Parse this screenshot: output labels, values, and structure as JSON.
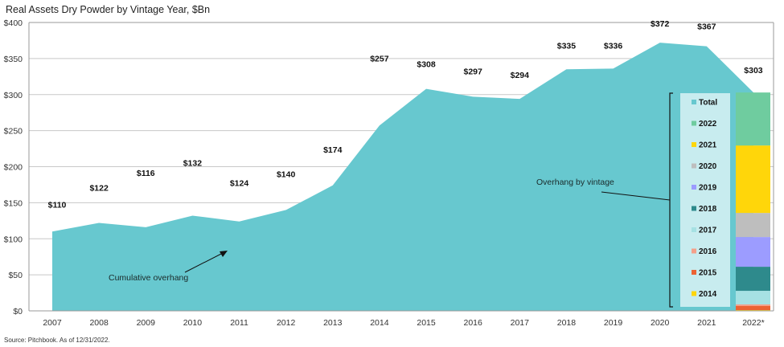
{
  "chart_data": {
    "type": "area",
    "title": "Real Assets Dry Powder by Vintage Year, $Bn",
    "xlabel": "",
    "ylabel": "",
    "ylim": [
      0,
      400
    ],
    "yticks": [
      0,
      50,
      100,
      150,
      200,
      250,
      300,
      350,
      400
    ],
    "ytick_labels": [
      "$0",
      "$50",
      "$100",
      "$150",
      "$200",
      "$250",
      "$300",
      "$350",
      "$400"
    ],
    "grid": true,
    "categories": [
      "2007",
      "2008",
      "2009",
      "2010",
      "2011",
      "2012",
      "2013",
      "2014",
      "2015",
      "2016",
      "2017",
      "2018",
      "2019",
      "2020",
      "2021",
      "2022*"
    ],
    "series": [
      {
        "name": "Total",
        "color": "#67C8CF",
        "values": [
          110,
          122,
          116,
          132,
          124,
          140,
          174,
          257,
          308,
          297,
          294,
          335,
          336,
          372,
          367,
          303
        ],
        "labels": [
          "$110",
          "$122",
          "$116",
          "$132",
          "$124",
          "$140",
          "$174",
          "$257",
          "$308",
          "$297",
          "$294",
          "$335",
          "$336",
          "$372",
          "$367",
          "$303"
        ]
      }
    ],
    "stacked_bar": {
      "category": "2022*",
      "total": 303,
      "segments": [
        {
          "name": "2014",
          "value": 1.1,
          "color": "#FFD60A"
        },
        {
          "name": "2015",
          "value": 5.6,
          "color": "#EC6334"
        },
        {
          "name": "2016",
          "value": 2.2,
          "color": "#F4A08A"
        },
        {
          "name": "2017",
          "value": 18.9,
          "color": "#A6E1E3"
        },
        {
          "name": "2018",
          "value": 33.4,
          "color": "#2E8A8C"
        },
        {
          "name": "2019",
          "value": 41.2,
          "color": "#9C9CFF"
        },
        {
          "name": "2020",
          "value": 33.4,
          "color": "#BEBEBE"
        },
        {
          "name": "2021",
          "value": 93.6,
          "color": "#FFD60A"
        },
        {
          "name": "2022",
          "value": 73.5,
          "color": "#6FCC9F"
        }
      ]
    },
    "legend": {
      "placement": "right",
      "entries": [
        {
          "label": "Total",
          "color": "#67C8CF"
        },
        {
          "label": "2022",
          "color": "#6FCC9F"
        },
        {
          "label": "2021",
          "color": "#FFD60A"
        },
        {
          "label": "2020",
          "color": "#BEBEBE"
        },
        {
          "label": "2019",
          "color": "#9C9CFF"
        },
        {
          "label": "2018",
          "color": "#2E8A8C"
        },
        {
          "label": "2017",
          "color": "#A6E1E3"
        },
        {
          "label": "2016",
          "color": "#F4A08A"
        },
        {
          "label": "2015",
          "color": "#EC6334"
        },
        {
          "label": "2014",
          "color": "#FFD60A"
        }
      ]
    },
    "annotations": {
      "cumulative": "Cumulative overhang",
      "vintage": "Overhang by vintage"
    }
  },
  "source": "Source: Pitchbook. As of 12/31/2022."
}
